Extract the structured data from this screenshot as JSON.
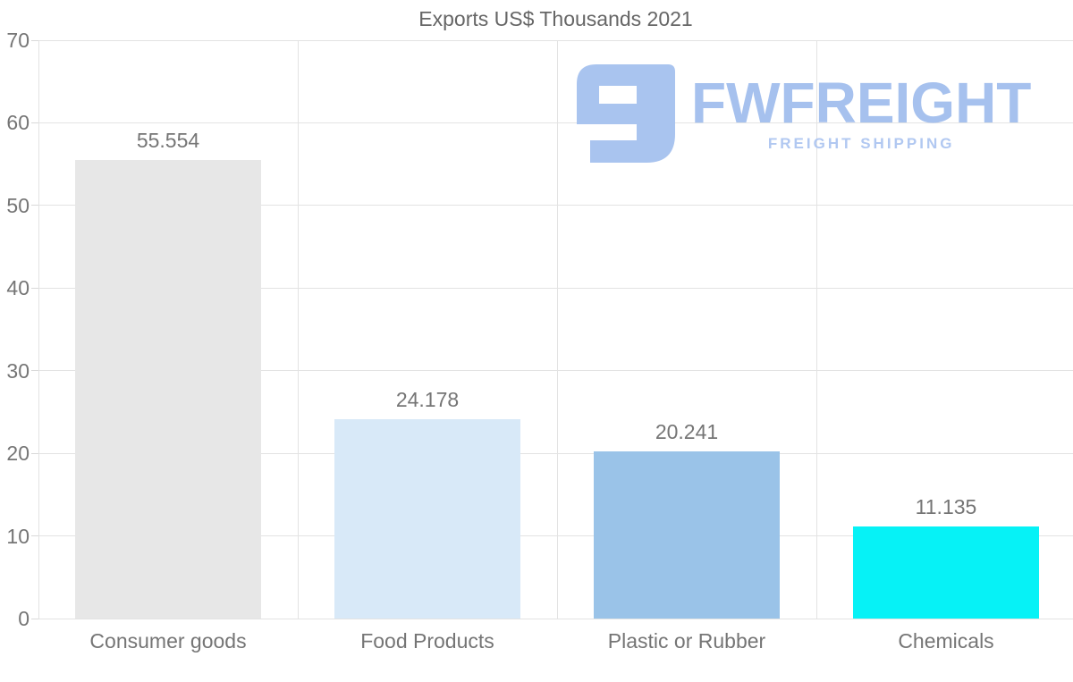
{
  "title": "Exports US$ Thousands 2021",
  "logo": {
    "name": "FWFREIGHT",
    "tagline": "FREIGHT SHIPPING",
    "name_color": "#a6c1ee",
    "tagline_color": "#b1c8f1",
    "mark_color": "#a9c4ef"
  },
  "axis": {
    "grid_color": "#e3e3e3",
    "tick_color": "#757575"
  },
  "chart_data": {
    "type": "bar",
    "title": "Exports US$ Thousands 2021",
    "categories": [
      "Consumer goods",
      "Food Products",
      "Plastic or Rubber",
      "Chemicals"
    ],
    "values": [
      55.554,
      24.178,
      20.241,
      11.135
    ],
    "value_labels": [
      "55.554",
      "24.178",
      "20.241",
      "11.135"
    ],
    "bar_colors": [
      "#e7e7e7",
      "#d8e9f8",
      "#9ac3e8",
      "#06f2f6"
    ],
    "ylim": [
      0,
      70
    ],
    "yticks": [
      0,
      10,
      20,
      30,
      40,
      50,
      60,
      70
    ],
    "grid": true,
    "legend": false,
    "xlabel": "",
    "ylabel": ""
  }
}
